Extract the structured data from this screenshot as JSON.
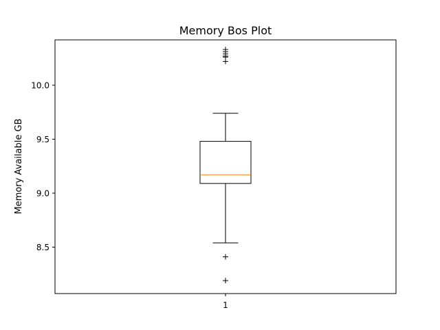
{
  "chart_data": {
    "type": "box",
    "title": "Memory Bos Plot",
    "xlabel": "",
    "ylabel": "Memory Available GB",
    "ylim": [
      8.07,
      10.42
    ],
    "yticks": [
      8.5,
      9.0,
      9.5,
      10.0
    ],
    "ytick_labels": [
      "8.5",
      "9.0",
      "9.5",
      "10.0"
    ],
    "categories": [
      "1"
    ],
    "boxes": [
      {
        "category": "1",
        "whisker_low": 8.54,
        "q1": 9.09,
        "median": 9.17,
        "q3": 9.48,
        "whisker_high": 9.74,
        "outliers": [
          8.19,
          8.41,
          10.22,
          10.26,
          10.27,
          10.29,
          10.31,
          10.33
        ]
      }
    ],
    "colors": {
      "box": "#000000",
      "median": "#ff7f0e",
      "outlier": "#000000"
    },
    "outlier_marker": "+",
    "grid": false,
    "legend": false
  }
}
